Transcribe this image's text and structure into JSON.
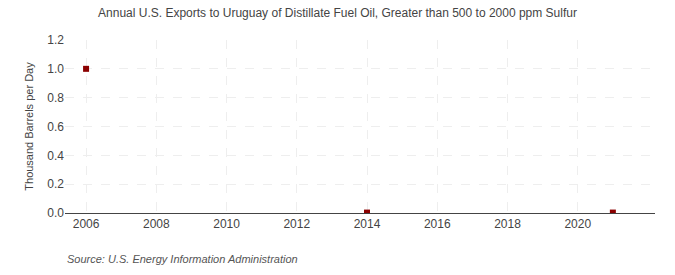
{
  "chart_data": {
    "type": "scatter",
    "title": "Annual U.S. Exports to Uruguay of Distillate Fuel Oil, Greater than 500 to 2000 ppm Sulfur",
    "ylabel": "Thousand Barrels per Day",
    "annotations": [
      "Source: U.S. Energy Information Administration"
    ],
    "x": [
      2006,
      2014,
      2021
    ],
    "values": [
      1.0,
      0.003,
      0.003
    ],
    "color": "#8b0000",
    "marker": "square",
    "xlim": [
      2005.4,
      2022.2
    ],
    "ylim": [
      0.0,
      1.2
    ],
    "xticks": [
      2006,
      2008,
      2010,
      2012,
      2014,
      2016,
      2018,
      2020
    ],
    "yticks": [
      {
        "value": 0.0,
        "label": "0.0"
      },
      0.2,
      0.4,
      0.6,
      0.8,
      {
        "value": 1.0,
        "label": "1.0"
      },
      1.2
    ],
    "grid": true
  }
}
